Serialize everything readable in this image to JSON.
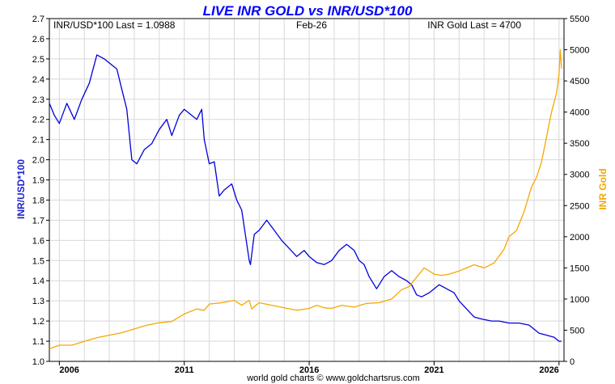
{
  "chart_data": {
    "type": "line",
    "title": "LIVE INR GOLD vs INR/USD*100",
    "header_left": "INR/USD*100 Last = 1.0988",
    "header_center": "Feb-26",
    "header_right": "INR Gold Last = 4700",
    "footer": "world gold charts © www.goldchartsrus.com",
    "left_axis": {
      "label": "INR/USD*100",
      "range": [
        1.0,
        2.7
      ],
      "ticks": [
        "1.0",
        "1.1",
        "1.2",
        "1.3",
        "1.4",
        "1.5",
        "1.6",
        "1.7",
        "1.8",
        "1.9",
        "2.0",
        "2.1",
        "2.2",
        "2.3",
        "2.4",
        "2.5",
        "2.6",
        "2.7"
      ]
    },
    "right_axis": {
      "label": "INR Gold",
      "range": [
        0,
        5500
      ],
      "ticks": [
        "0",
        "500",
        "1000",
        "1500",
        "2000",
        "2500",
        "3000",
        "3500",
        "4000",
        "4500",
        "5000",
        "5500"
      ]
    },
    "x_axis": {
      "range": [
        2005.6,
        2026.2
      ],
      "ticks": [
        {
          "label": "2006",
          "value": 2006.0
        },
        {
          "label": "2011",
          "value": 2011.0
        },
        {
          "label": "2016",
          "value": 2016.0
        },
        {
          "label": "2021",
          "value": 2021.0
        },
        {
          "label": "2026",
          "value": 2026.0
        }
      ]
    },
    "colors": {
      "inr_usd": "#0000dd",
      "gold": "#f5a800",
      "left_label": "#2222cc",
      "right_label": "#f0a800",
      "title": "#0000ff"
    },
    "series": [
      {
        "name": "INR/USD*100",
        "axis": "left",
        "x": [
          2005.6,
          2005.8,
          2006.0,
          2006.3,
          2006.6,
          2006.9,
          2007.2,
          2007.5,
          2007.8,
          2008.0,
          2008.3,
          2008.5,
          2008.7,
          2008.9,
          2009.1,
          2009.4,
          2009.7,
          2010.0,
          2010.3,
          2010.5,
          2010.8,
          2011.0,
          2011.3,
          2011.5,
          2011.7,
          2011.8,
          2012.0,
          2012.2,
          2012.4,
          2012.6,
          2012.9,
          2013.1,
          2013.3,
          2013.6,
          2013.65,
          2013.8,
          2014.0,
          2014.3,
          2014.6,
          2014.9,
          2015.2,
          2015.5,
          2015.8,
          2016.0,
          2016.3,
          2016.6,
          2016.9,
          2017.2,
          2017.5,
          2017.8,
          2018.0,
          2018.2,
          2018.4,
          2018.7,
          2018.8,
          2019.0,
          2019.3,
          2019.6,
          2019.9,
          2020.1,
          2020.3,
          2020.5,
          2020.8,
          2021.0,
          2021.2,
          2021.5,
          2021.8,
          2022.0,
          2022.3,
          2022.6,
          2022.9,
          2023.3,
          2023.6,
          2024.0,
          2024.4,
          2024.8,
          2025.0,
          2025.2,
          2025.5,
          2025.8,
          2026.0,
          2026.1
        ],
        "values": [
          2.28,
          2.22,
          2.18,
          2.28,
          2.2,
          2.3,
          2.38,
          2.52,
          2.5,
          2.48,
          2.45,
          2.35,
          2.25,
          2.0,
          1.98,
          2.05,
          2.08,
          2.15,
          2.2,
          2.12,
          2.22,
          2.25,
          2.22,
          2.2,
          2.25,
          2.1,
          1.98,
          1.99,
          1.82,
          1.85,
          1.88,
          1.8,
          1.75,
          1.5,
          1.48,
          1.63,
          1.65,
          1.7,
          1.65,
          1.6,
          1.56,
          1.52,
          1.55,
          1.52,
          1.49,
          1.48,
          1.5,
          1.55,
          1.58,
          1.55,
          1.5,
          1.48,
          1.42,
          1.36,
          1.38,
          1.42,
          1.45,
          1.42,
          1.4,
          1.38,
          1.33,
          1.32,
          1.34,
          1.36,
          1.38,
          1.36,
          1.34,
          1.3,
          1.26,
          1.22,
          1.21,
          1.2,
          1.2,
          1.19,
          1.19,
          1.18,
          1.16,
          1.14,
          1.13,
          1.12,
          1.1,
          1.1
        ]
      },
      {
        "name": "INR Gold",
        "axis": "right",
        "x": [
          2005.6,
          2006.0,
          2006.5,
          2007.0,
          2007.5,
          2008.0,
          2008.5,
          2009.0,
          2009.5,
          2010.0,
          2010.5,
          2011.0,
          2011.5,
          2011.8,
          2012.0,
          2012.5,
          2013.0,
          2013.3,
          2013.6,
          2013.7,
          2013.8,
          2014.0,
          2014.5,
          2015.0,
          2015.5,
          2016.0,
          2016.3,
          2016.6,
          2016.9,
          2017.3,
          2017.8,
          2018.3,
          2018.8,
          2019.3,
          2019.7,
          2020.0,
          2020.3,
          2020.6,
          2020.8,
          2021.0,
          2021.3,
          2021.6,
          2022.0,
          2022.3,
          2022.6,
          2023.0,
          2023.4,
          2023.8,
          2024.0,
          2024.3,
          2024.6,
          2024.9,
          2025.1,
          2025.3,
          2025.5,
          2025.7,
          2025.9,
          2026.0,
          2026.05,
          2026.1
        ],
        "values": [
          200,
          260,
          260,
          320,
          380,
          420,
          460,
          520,
          580,
          620,
          640,
          760,
          840,
          820,
          920,
          940,
          980,
          900,
          980,
          840,
          880,
          940,
          900,
          860,
          820,
          850,
          900,
          860,
          850,
          900,
          870,
          930,
          940,
          1000,
          1150,
          1200,
          1350,
          1500,
          1450,
          1400,
          1380,
          1400,
          1450,
          1500,
          1550,
          1500,
          1580,
          1800,
          2000,
          2100,
          2400,
          2800,
          2950,
          3200,
          3600,
          4000,
          4300,
          4600,
          5000,
          4700
        ]
      }
    ]
  }
}
